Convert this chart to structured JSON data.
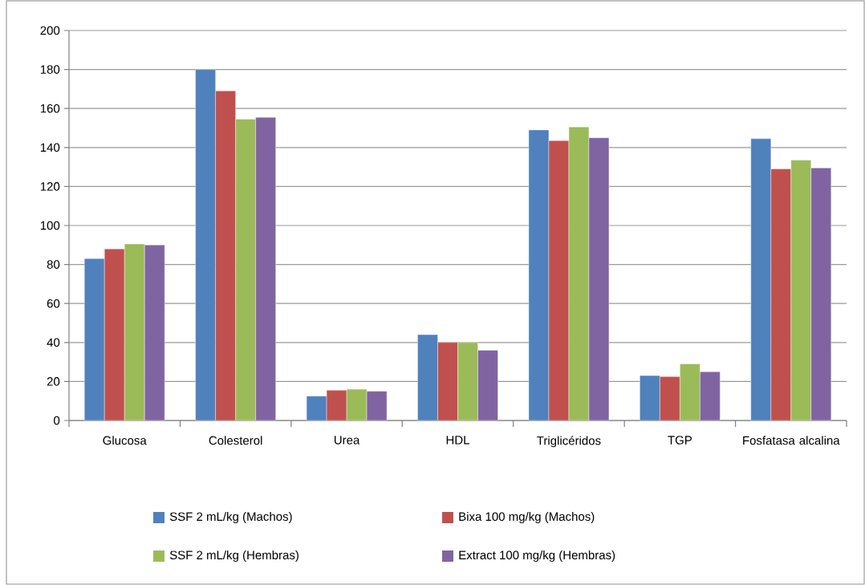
{
  "chart_data": {
    "type": "bar",
    "categories": [
      "Glucosa",
      "Colesterol",
      "Urea",
      "HDL",
      "Triglicéridos",
      "TGP",
      "Fosfatasa alcalina"
    ],
    "series": [
      {
        "name": "SSF 2 mL/kg (Machos)",
        "color": "#4f81bd",
        "values": [
          83,
          180,
          12.5,
          44,
          149,
          23,
          144.5
        ]
      },
      {
        "name": "Bixa 100 mg/kg (Machos)",
        "color": "#c0504d",
        "values": [
          88,
          169,
          15.5,
          40,
          143.5,
          22.5,
          129
        ]
      },
      {
        "name": "SSF 2 mL/kg (Hembras)",
        "color": "#9bbb59",
        "values": [
          90.5,
          154.5,
          16,
          40,
          150.5,
          29,
          133.5
        ]
      },
      {
        "name": "Extract 100 mg/kg (Hembras)",
        "color": "#8064a2",
        "values": [
          90,
          155.5,
          15,
          36,
          145,
          25,
          129.5
        ]
      }
    ],
    "ylim": [
      0,
      200
    ],
    "yticks": [
      0,
      20,
      40,
      60,
      80,
      100,
      120,
      140,
      160,
      180,
      200
    ],
    "grid": "y",
    "legend": "bottom"
  }
}
